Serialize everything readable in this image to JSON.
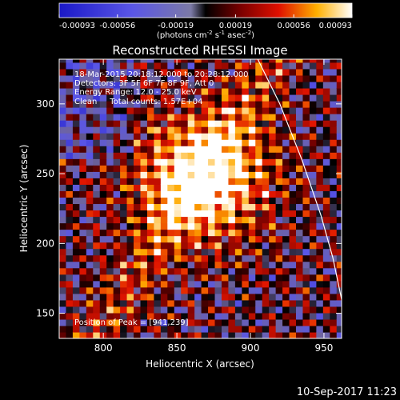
{
  "chart_data": {
    "type": "heatmap",
    "title": "Reconstructed RHESSI Image",
    "xlabel": "Heliocentric X (arcsec)",
    "ylabel": "Heliocentric Y (arcsec)",
    "xlim": [
      770,
      962
    ],
    "ylim": [
      132,
      332
    ],
    "x_ticks": [
      "800",
      "850",
      "900",
      "950"
    ],
    "y_ticks": [
      "150",
      "200",
      "250",
      "300"
    ],
    "colorbar": {
      "range": [
        -0.00093,
        0.00093
      ],
      "tick_labels": [
        "-0.00093",
        "-0.00056",
        "-0.00019",
        "0.00019",
        "0.00056",
        "0.00093"
      ],
      "unit_label": "(photons cm",
      "unit_exp1": "-2",
      "unit_mid": " s",
      "unit_exp2": "-1",
      "unit_mid2": " asec",
      "unit_exp3": "-2",
      "unit_end": ")"
    },
    "annotations": [
      "18-Mar-2015 20:18:12.000 to 20:28:12.000",
      "Detectors: 3F 5F 6F 7F 8F 9F, Att 0",
      "Energy Range: 12.0 - 25.0 keV",
      "Clean     Total counts: 1.57E+04"
    ],
    "peak_label": "Position of Peak = [941,239]",
    "peak": [
      941,
      239
    ],
    "bright_source_center": [
      866,
      245
    ],
    "limb_points": [
      [
        905,
        332
      ],
      [
        920,
        300
      ],
      [
        935,
        260
      ],
      [
        948,
        220
      ],
      [
        956,
        190
      ],
      [
        962,
        160
      ]
    ]
  },
  "footer": {
    "date": "10-Sep-2017 11:23"
  },
  "colors": {
    "background": "#000000",
    "text": "#ffffff",
    "limb": "#ffffff"
  }
}
